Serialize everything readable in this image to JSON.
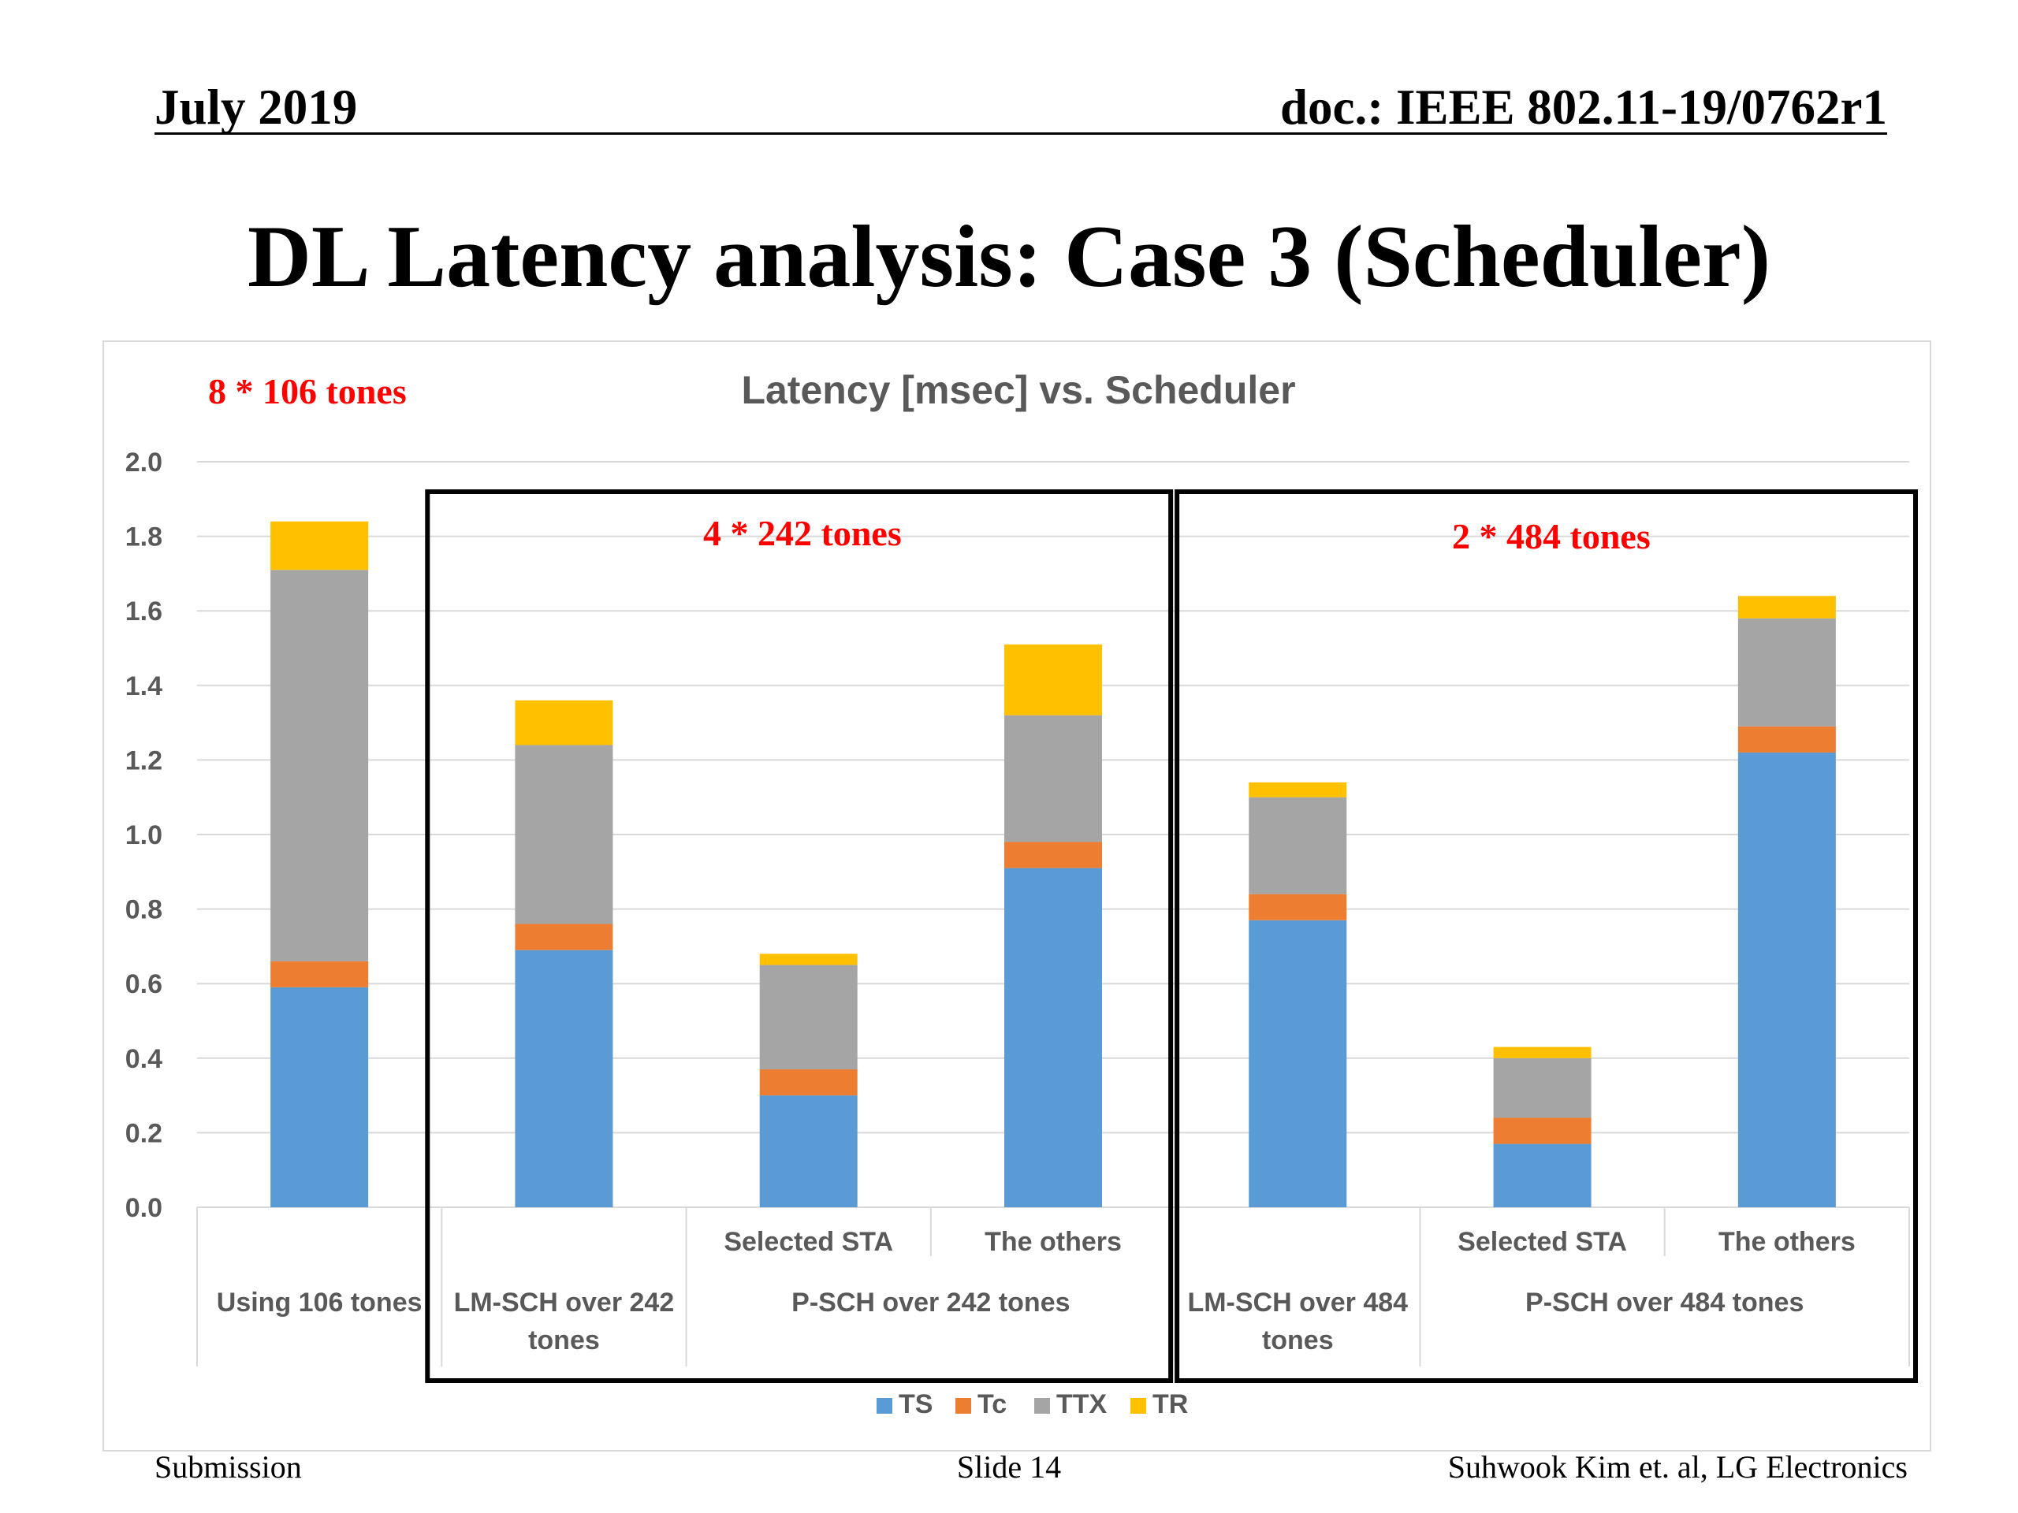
{
  "header": {
    "date": "July 2019",
    "doc": "doc.: IEEE 802.11-19/0762r1"
  },
  "slide_title": "DL Latency analysis: Case 3 (Scheduler)",
  "annotations": {
    "tones_106": "8 * 106 tones",
    "tones_242": "4 * 242 tones",
    "tones_484": "2 * 484 tones"
  },
  "footer": {
    "left": "Submission",
    "center": "Slide 14",
    "right": "Suhwook Kim et. al, LG Electronics"
  },
  "colors": {
    "TS": "#5b9bd5",
    "Tc": "#ed7d31",
    "TTX": "#a5a5a5",
    "TR": "#ffc000",
    "annotation": "#ff0000",
    "axis_text": "#595959",
    "gridline": "#d9d9d9"
  },
  "chart_data": {
    "type": "bar",
    "stacked": true,
    "title": "Latency [msec] vs. Scheduler",
    "xlabel": "",
    "ylabel": "",
    "ylim": [
      0,
      2.0
    ],
    "y_ticks": [
      "0.0",
      "0.2",
      "0.4",
      "0.6",
      "0.8",
      "1.0",
      "1.2",
      "1.4",
      "1.6",
      "1.8",
      "2.0"
    ],
    "grid": true,
    "legend_position": "bottom",
    "categories": [
      {
        "sub": "",
        "group": "Using 106 tones"
      },
      {
        "sub": "",
        "group": "LM-SCH over 242 tones"
      },
      {
        "sub": "Selected STA",
        "group": "P-SCH over 242 tones"
      },
      {
        "sub": "The others",
        "group": "P-SCH over 242 tones"
      },
      {
        "sub": "",
        "group": "LM-SCH over 484 tones"
      },
      {
        "sub": "Selected STA",
        "group": "P-SCH over 484 tones"
      },
      {
        "sub": "The others",
        "group": "P-SCH over 484 tones"
      }
    ],
    "group_labels": [
      {
        "label": "Using 106 tones",
        "lines": [
          "Using 106 tones"
        ]
      },
      {
        "label": "LM-SCH over 242 tones",
        "lines": [
          "LM-SCH over 242",
          "tones"
        ]
      },
      {
        "label": "P-SCH over 242 tones",
        "lines": [
          "P-SCH over 242 tones"
        ]
      },
      {
        "label": "LM-SCH over 484 tones",
        "lines": [
          "LM-SCH over 484",
          "tones"
        ]
      },
      {
        "label": "P-SCH over 484 tones",
        "lines": [
          "P-SCH over 484 tones"
        ]
      }
    ],
    "series": [
      {
        "name": "TS",
        "values": [
          0.59,
          0.69,
          0.3,
          0.91,
          0.77,
          0.17,
          1.22
        ]
      },
      {
        "name": "Tc",
        "values": [
          0.07,
          0.07,
          0.07,
          0.07,
          0.07,
          0.07,
          0.07
        ]
      },
      {
        "name": "TTX",
        "values": [
          1.05,
          0.48,
          0.28,
          0.34,
          0.26,
          0.16,
          0.29
        ]
      },
      {
        "name": "TR",
        "values": [
          0.13,
          0.12,
          0.03,
          0.19,
          0.04,
          0.03,
          0.06
        ]
      }
    ]
  }
}
